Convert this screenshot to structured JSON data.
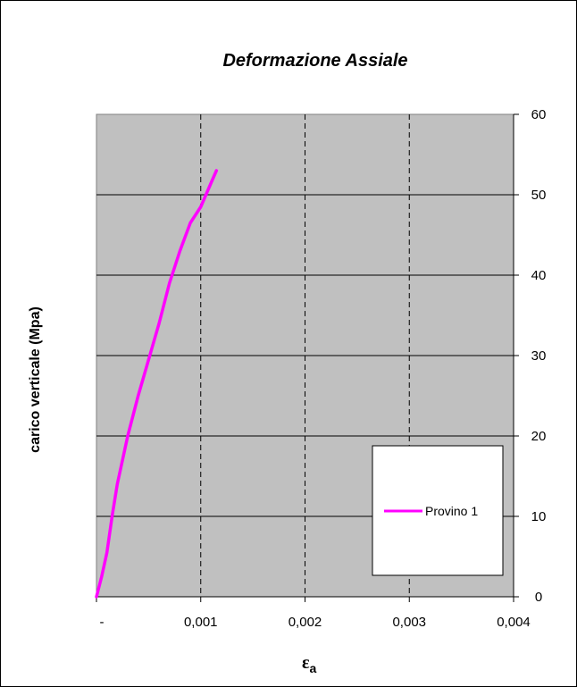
{
  "chart_data": {
    "type": "line",
    "title": "Deformazione Assiale",
    "xlabel": "ε",
    "xlabel_sub": "a",
    "ylabel": "carico verticale (Mpa)",
    "x_ticks": [
      {
        "value": 0,
        "label": "-"
      },
      {
        "value": 0.001,
        "label": "0,001"
      },
      {
        "value": 0.002,
        "label": "0,002"
      },
      {
        "value": 0.003,
        "label": "0,003"
      },
      {
        "value": 0.004,
        "label": "0,004"
      }
    ],
    "y_ticks": [
      {
        "value": 0,
        "label": "0"
      },
      {
        "value": 10,
        "label": "10"
      },
      {
        "value": 20,
        "label": "20"
      },
      {
        "value": 30,
        "label": "30"
      },
      {
        "value": 40,
        "label": "40"
      },
      {
        "value": 50,
        "label": "50"
      },
      {
        "value": 60,
        "label": "60"
      }
    ],
    "xlim": [
      0,
      0.004
    ],
    "ylim": [
      0,
      60
    ],
    "y_axis_side": "right",
    "plot_background": "#c0c0c0",
    "vertical_grid": "dashed",
    "horizontal_grid": "solid",
    "legend_position": "bottom-right",
    "series": [
      {
        "name": "Provino 1",
        "color": "#ff00ff",
        "x": [
          0.0,
          5e-05,
          0.0001,
          0.00015,
          0.0002,
          0.0003,
          0.0004,
          0.0005,
          0.0006,
          0.0007,
          0.0008,
          0.0009,
          0.001,
          0.00105,
          0.0011,
          0.00115
        ],
        "y": [
          0.0,
          2.5,
          5.5,
          10.0,
          14.0,
          20.0,
          25.0,
          29.5,
          34.0,
          39.0,
          43.0,
          46.5,
          48.5,
          50.0,
          51.5,
          53.0
        ]
      }
    ]
  }
}
